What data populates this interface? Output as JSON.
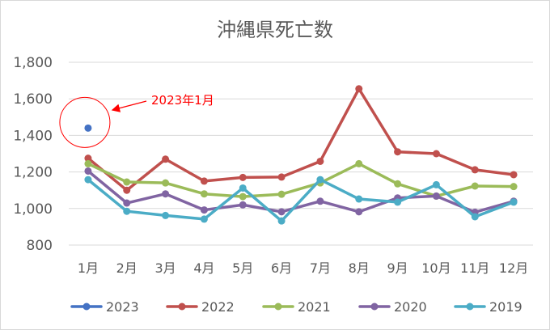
{
  "chart_data": {
    "type": "line",
    "title": "沖縄県死亡数",
    "xlabel": "",
    "ylabel": "",
    "categories": [
      "1月",
      "2月",
      "3月",
      "4月",
      "5月",
      "6月",
      "7月",
      "8月",
      "9月",
      "10月",
      "11月",
      "12月"
    ],
    "ylim": [
      800,
      1800
    ],
    "yticks": [
      800,
      1000,
      1200,
      1400,
      1600,
      1800
    ],
    "ytick_labels": [
      "800",
      "1,000",
      "1,200",
      "1,400",
      "1,600",
      "1,800"
    ],
    "grid": true,
    "legend_position": "bottom",
    "series": [
      {
        "name": "2023",
        "color": "#4472c4",
        "values": [
          1440,
          null,
          null,
          null,
          null,
          null,
          null,
          null,
          null,
          null,
          null,
          null
        ]
      },
      {
        "name": "2022",
        "color": "#c0504d",
        "values": [
          1275,
          1100,
          1270,
          1150,
          1170,
          1172,
          1258,
          1655,
          1310,
          1300,
          1212,
          1185
        ]
      },
      {
        "name": "2021",
        "color": "#9bbb59",
        "values": [
          1245,
          1145,
          1140,
          1080,
          1065,
          1078,
          1140,
          1245,
          1135,
          1068,
          1123,
          1120
        ]
      },
      {
        "name": "2020",
        "color": "#8064a2",
        "values": [
          1205,
          1030,
          1080,
          992,
          1020,
          982,
          1040,
          982,
          1058,
          1068,
          980,
          1040
        ]
      },
      {
        "name": "2019",
        "color": "#4bacc6",
        "values": [
          1158,
          985,
          962,
          942,
          1112,
          932,
          1158,
          1052,
          1035,
          1130,
          955,
          1035
        ]
      }
    ],
    "annotation": {
      "text": "2023年1月",
      "color": "#ff0000"
    }
  }
}
